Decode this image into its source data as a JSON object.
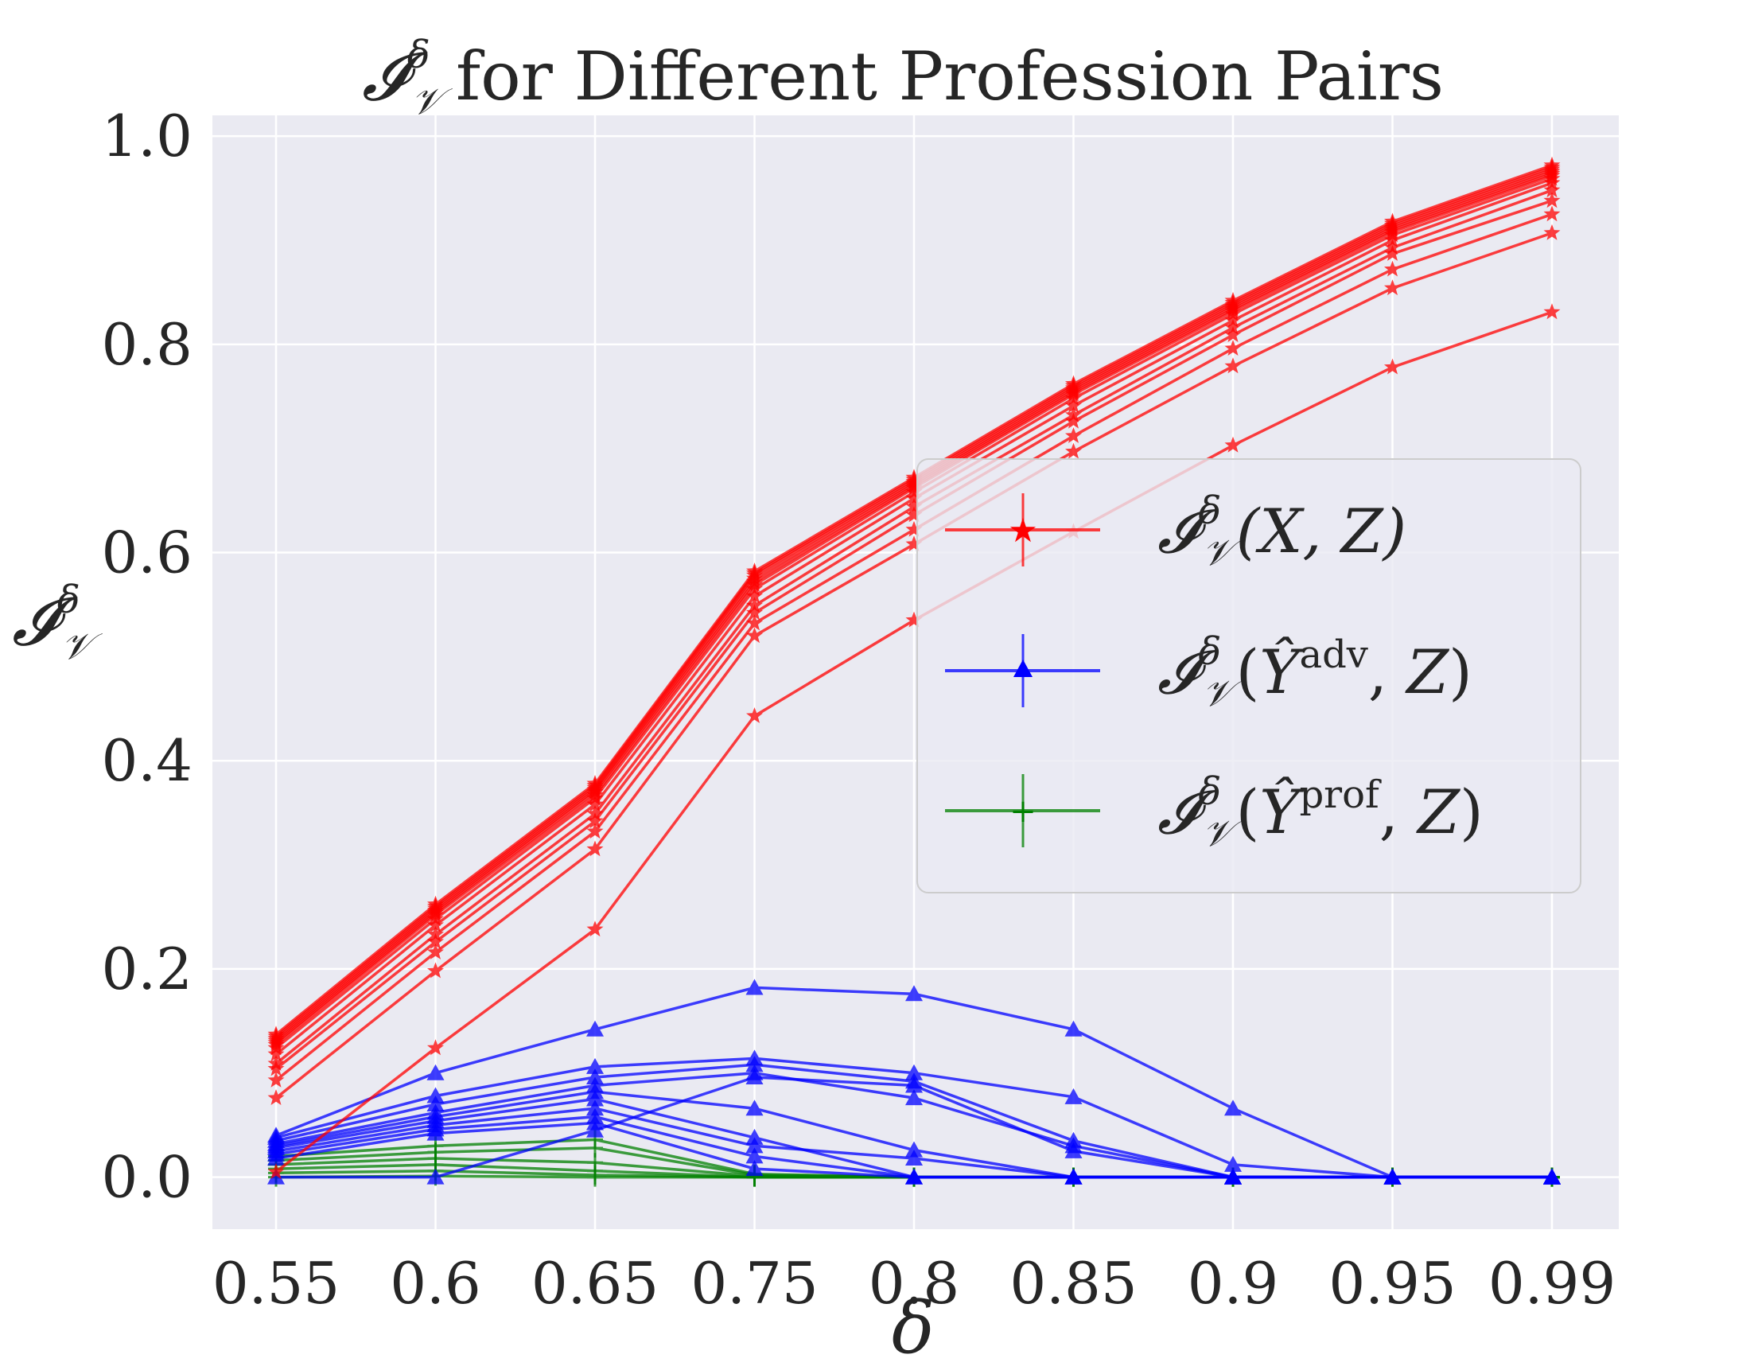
{
  "chart_data": {
    "type": "line",
    "title": {
      "symbol": "𝓘",
      "sup": "δ",
      "sub": "𝒱",
      "text": "for Different Profession Pairs"
    },
    "xlabel": "δ",
    "ylabel": {
      "symbol": "𝓘",
      "sup": "δ",
      "sub": "𝒱"
    },
    "categories": [
      "0.55",
      "0.6",
      "0.65",
      "0.75",
      "0.8",
      "0.85",
      "0.9",
      "0.95",
      "0.99"
    ],
    "ylim": [
      -0.05,
      1.02
    ],
    "yticks": [
      "0.0",
      "0.2",
      "0.4",
      "0.6",
      "0.8",
      "1.0"
    ],
    "grid": true,
    "legend_position": "center-right",
    "groups": [
      {
        "key": "xz",
        "color": "#ff0000",
        "marker": "star",
        "legend": {
          "symbol": "𝓘",
          "sup": "δ",
          "sub": "𝒱",
          "args": "(X, Z)",
          "hat": "",
          "hat_sup": ""
        },
        "series": [
          [
            0.137,
            0.262,
            0.378,
            0.582,
            0.672,
            0.762,
            0.842,
            0.918,
            0.972
          ],
          [
            0.135,
            0.26,
            0.376,
            0.58,
            0.67,
            0.76,
            0.84,
            0.916,
            0.97
          ],
          [
            0.133,
            0.258,
            0.374,
            0.578,
            0.668,
            0.758,
            0.838,
            0.914,
            0.968
          ],
          [
            0.131,
            0.256,
            0.372,
            0.575,
            0.666,
            0.756,
            0.836,
            0.912,
            0.966
          ],
          [
            0.129,
            0.254,
            0.37,
            0.572,
            0.664,
            0.754,
            0.834,
            0.91,
            0.964
          ],
          [
            0.127,
            0.252,
            0.367,
            0.569,
            0.662,
            0.752,
            0.832,
            0.908,
            0.962
          ],
          [
            0.124,
            0.248,
            0.364,
            0.565,
            0.658,
            0.748,
            0.829,
            0.905,
            0.959
          ],
          [
            0.118,
            0.242,
            0.358,
            0.558,
            0.652,
            0.741,
            0.823,
            0.9,
            0.955
          ],
          [
            0.109,
            0.233,
            0.349,
            0.549,
            0.644,
            0.732,
            0.816,
            0.893,
            0.948
          ],
          [
            0.104,
            0.226,
            0.342,
            0.542,
            0.636,
            0.726,
            0.809,
            0.887,
            0.938
          ],
          [
            0.093,
            0.216,
            0.332,
            0.532,
            0.622,
            0.712,
            0.796,
            0.872,
            0.925
          ],
          [
            0.076,
            0.198,
            0.315,
            0.52,
            0.608,
            0.697,
            0.779,
            0.854,
            0.907
          ],
          [
            0.005,
            0.124,
            0.238,
            0.443,
            0.535,
            0.62,
            0.703,
            0.778,
            0.831
          ]
        ]
      },
      {
        "key": "adv",
        "color": "#0000ff",
        "marker": "triangle",
        "legend": {
          "symbol": "𝓘",
          "sup": "δ",
          "sub": "𝒱",
          "args": "",
          "hat": "Ŷ",
          "hat_sup": "adv"
        },
        "series": [
          [
            0.04,
            0.1,
            0.142,
            0.182,
            0.176,
            0.142,
            0.066,
            0.0,
            0.0
          ],
          [
            0.038,
            0.078,
            0.106,
            0.114,
            0.1,
            0.077,
            0.012,
            0.0,
            0.0
          ],
          [
            0.035,
            0.07,
            0.096,
            0.108,
            0.092,
            0.035,
            0.0,
            0.0,
            0.0
          ],
          [
            0.032,
            0.062,
            0.088,
            0.1,
            0.076,
            0.03,
            0.0,
            0.0,
            0.0
          ],
          [
            0.03,
            0.058,
            0.082,
            0.066,
            0.026,
            0.0,
            0.0,
            0.0,
            0.0
          ],
          [
            0.028,
            0.054,
            0.075,
            0.038,
            0.0,
            0.0,
            0.0,
            0.0,
            0.0
          ],
          [
            0.025,
            0.05,
            0.066,
            0.03,
            0.018,
            0.0,
            0.0,
            0.0,
            0.0
          ],
          [
            0.022,
            0.046,
            0.058,
            0.02,
            0.0,
            0.0,
            0.0,
            0.0,
            0.0
          ],
          [
            0.018,
            0.042,
            0.052,
            0.008,
            0.0,
            0.0,
            0.0,
            0.0,
            0.0
          ],
          [
            0.0,
            0.0,
            0.045,
            0.096,
            0.088,
            0.025,
            0.0,
            0.0,
            0.0
          ]
        ]
      },
      {
        "key": "prof",
        "color": "#008000",
        "marker": "plus",
        "legend": {
          "symbol": "𝓘",
          "sup": "δ",
          "sub": "𝒱",
          "args": "",
          "hat": "Ŷ",
          "hat_sup": "prof"
        },
        "series": [
          [
            0.02,
            0.03,
            0.036,
            0.003,
            0.0,
            0.0,
            0.0,
            0.0,
            0.0
          ],
          [
            0.016,
            0.024,
            0.028,
            0.002,
            0.0,
            0.0,
            0.0,
            0.0,
            0.0
          ],
          [
            0.012,
            0.018,
            0.014,
            0.001,
            0.0,
            0.0,
            0.0,
            0.0,
            0.0
          ],
          [
            0.008,
            0.012,
            0.006,
            0.0,
            0.0,
            0.0,
            0.0,
            0.0,
            0.0
          ],
          [
            0.004,
            0.006,
            0.002,
            0.0,
            0.0,
            0.0,
            0.0,
            0.0,
            0.0
          ],
          [
            0.0,
            0.001,
            0.0,
            0.0,
            0.0,
            0.0,
            0.0,
            0.0,
            0.0
          ]
        ]
      }
    ]
  }
}
